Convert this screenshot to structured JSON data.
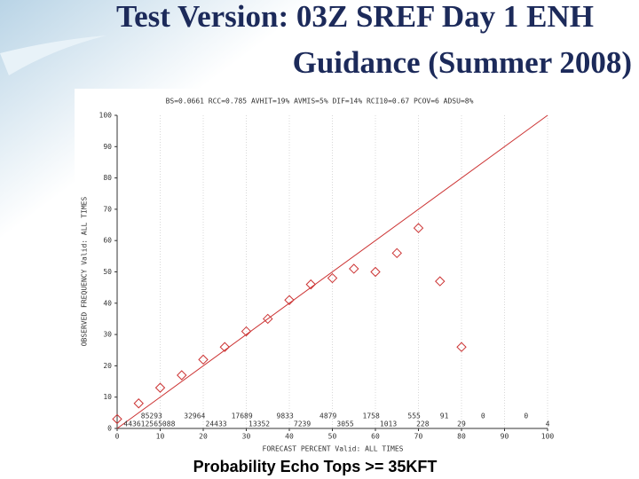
{
  "slide": {
    "title_lines": [
      "Test Version: 03Z SREF Day 1 ENH",
      "Guidance (Summer 2008)"
    ],
    "caption": "Probability Echo Tops >= 35KFT"
  },
  "chart_data": {
    "type": "scatter",
    "title": "BS=0.0661 RCC=0.785 AVHIT=19% AVMIS=5% DIF=14% RCI10=0.67 PCOV=6 ADSU=8%",
    "x_label": "FORECAST PERCENT Valid: ALL TIMES",
    "y_label": "OBSERVED FREQUENCY Valid: ALL TIMES",
    "x": [
      0,
      5,
      10,
      15,
      20,
      25,
      30,
      35,
      40,
      45,
      50,
      55,
      60,
      65,
      70,
      75,
      80
    ],
    "values": [
      3,
      8,
      13,
      17,
      22,
      26,
      31,
      35,
      41,
      46,
      48,
      51,
      50,
      56,
      64,
      47,
      26
    ],
    "color": "#cc3333",
    "reference_line": {
      "x": [
        0,
        100
      ],
      "y": [
        0,
        100
      ],
      "color": "#cc3333"
    },
    "counts_upper": {
      "x": [
        8,
        18,
        29,
        39,
        49,
        59,
        69,
        76,
        85,
        95
      ],
      "labels": [
        "85293",
        "32964",
        "17689",
        "9833",
        "4879",
        "1758",
        "555",
        "91",
        "0",
        "0"
      ]
    },
    "counts_lower": {
      "x": [
        5,
        11,
        23,
        33,
        43,
        53,
        63,
        71,
        80,
        100
      ],
      "labels": [
        "4436125",
        "65088",
        "24433",
        "13352",
        "7239",
        "3055",
        "1013",
        "228",
        "29",
        "4"
      ]
    },
    "xlim": [
      0,
      100
    ],
    "ylim": [
      0,
      100
    ],
    "xticks": [
      0,
      10,
      20,
      30,
      40,
      50,
      60,
      70,
      80,
      90,
      100
    ],
    "yticks": [
      0,
      10,
      20,
      30,
      40,
      50,
      60,
      70,
      80,
      90,
      100
    ],
    "grid": true
  }
}
